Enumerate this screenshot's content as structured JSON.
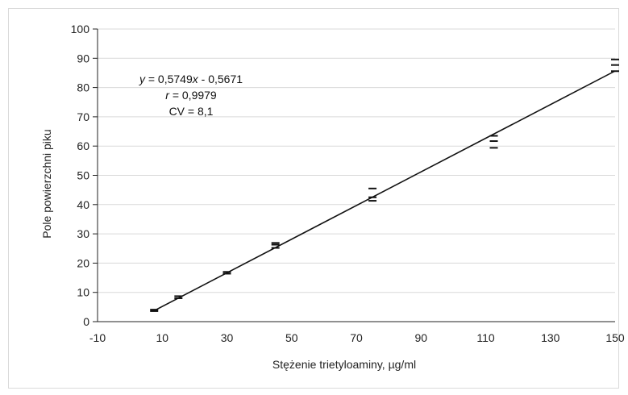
{
  "chart_data": {
    "type": "scatter",
    "title": "",
    "xlabel": "Stężenie trietyloaminy, µg/ml",
    "ylabel": "Pole powierzchni piku",
    "xlim": [
      -10,
      150
    ],
    "ylim": [
      0,
      100
    ],
    "x_ticks": [
      "-10",
      "10",
      "30",
      "50",
      "70",
      "90",
      "110",
      "130",
      "150"
    ],
    "y_ticks": [
      "0",
      "10",
      "20",
      "30",
      "40",
      "50",
      "60",
      "70",
      "80",
      "90",
      "100"
    ],
    "grid": "horizontal",
    "legend": "none",
    "points": [
      {
        "x": 7.5,
        "values": [
          3.6,
          4.1
        ]
      },
      {
        "x": 15,
        "values": [
          8.0,
          8.7
        ]
      },
      {
        "x": 30,
        "values": [
          16.4,
          17.0
        ]
      },
      {
        "x": 45,
        "values": [
          25.2,
          26.3,
          26.9
        ]
      },
      {
        "x": 75,
        "values": [
          41.3,
          42.5,
          45.5
        ]
      },
      {
        "x": 112.5,
        "values": [
          59.4,
          61.7,
          63.5
        ]
      },
      {
        "x": 150,
        "values": [
          85.6,
          87.7,
          89.6
        ]
      }
    ],
    "fit": {
      "slope": 0.5749,
      "intercept": -0.5671,
      "x_range": [
        7.5,
        150
      ]
    },
    "annotations": {
      "equation_var_y": "y",
      "equation_rest1": " = 0,5749",
      "equation_var_x": "x",
      "equation_rest2": " - 0,5671",
      "r_var": "r",
      "r_rest": " = 0,9979",
      "cv": "CV = 8,1"
    },
    "colors": {
      "line": "#111111",
      "marker": "#111111",
      "grid": "#d9d9d9"
    }
  }
}
